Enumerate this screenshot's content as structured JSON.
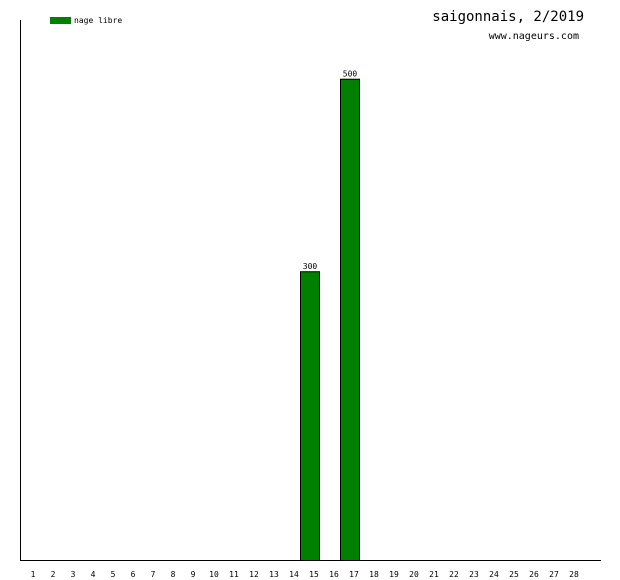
{
  "chart_data": {
    "type": "bar",
    "title": "saigonnais, 2/2019",
    "subtitle": "www.nageurs.com",
    "xlabel": "",
    "ylabel": "",
    "categories": [
      "1",
      "2",
      "3",
      "4",
      "5",
      "6",
      "7",
      "8",
      "9",
      "10",
      "11",
      "12",
      "13",
      "14",
      "15",
      "16",
      "17",
      "18",
      "19",
      "20",
      "21",
      "22",
      "23",
      "24",
      "25",
      "26",
      "27",
      "28"
    ],
    "series": [
      {
        "name": "nage libre",
        "color": "#008000",
        "values": [
          0,
          0,
          0,
          0,
          0,
          0,
          0,
          0,
          0,
          0,
          0,
          0,
          0,
          0,
          300,
          0,
          500,
          0,
          0,
          0,
          0,
          0,
          0,
          0,
          0,
          0,
          0,
          0
        ]
      }
    ],
    "ylim": [
      0,
      561
    ],
    "grid": false,
    "legend_position": "top-left"
  }
}
